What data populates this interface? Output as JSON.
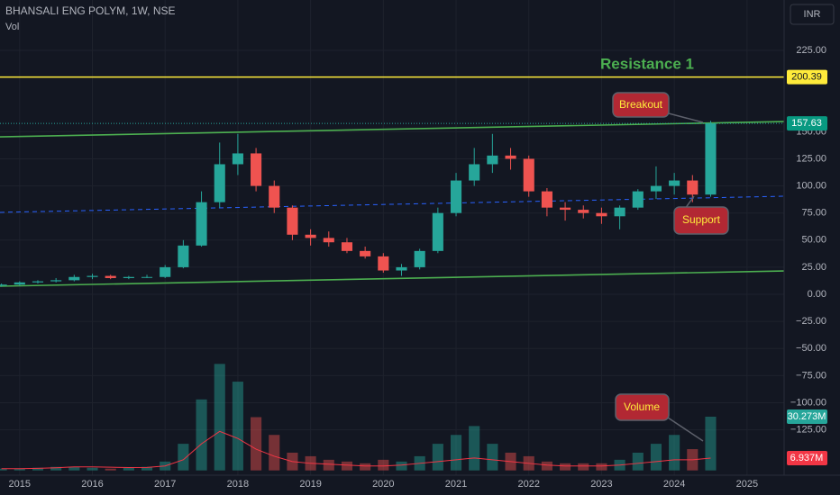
{
  "chart_data": {
    "type": "candlestick",
    "title": "BHANSALI ENG POLYM, 1W, NSE",
    "subtitle": "Vol",
    "currency": "INR",
    "x": [
      2014.75,
      2015.0,
      2015.25,
      2015.5,
      2015.75,
      2016.0,
      2016.25,
      2016.5,
      2016.75,
      2017.0,
      2017.25,
      2017.5,
      2017.75,
      2018.0,
      2018.25,
      2018.5,
      2018.75,
      2019.0,
      2019.25,
      2019.5,
      2019.75,
      2020.0,
      2020.25,
      2020.5,
      2020.75,
      2021.0,
      2021.25,
      2021.5,
      2021.75,
      2022.0,
      2022.25,
      2022.5,
      2022.75,
      2023.0,
      2023.25,
      2023.5,
      2023.75,
      2024.0,
      2024.25,
      2024.5
    ],
    "open": [
      8,
      9,
      11,
      12,
      13,
      16,
      17,
      15,
      16,
      16,
      25,
      45,
      85,
      120,
      130,
      100,
      80,
      55,
      52,
      48,
      40,
      35,
      22,
      25,
      40,
      75,
      105,
      120,
      128,
      125,
      95,
      80,
      78,
      75,
      72,
      80,
      95,
      100,
      105,
      92
    ],
    "high": [
      10,
      12,
      13,
      15,
      18,
      19,
      18,
      17,
      18,
      27,
      50,
      95,
      140,
      148,
      135,
      105,
      82,
      60,
      58,
      52,
      44,
      38,
      28,
      42,
      80,
      112,
      135,
      148,
      135,
      128,
      98,
      85,
      82,
      80,
      82,
      97,
      118,
      112,
      110,
      160
    ],
    "low": [
      7,
      8,
      10,
      11,
      12,
      14,
      14,
      14,
      15,
      15,
      24,
      44,
      80,
      110,
      95,
      75,
      50,
      45,
      44,
      38,
      33,
      20,
      17,
      23,
      38,
      72,
      100,
      112,
      115,
      90,
      72,
      68,
      70,
      65,
      60,
      78,
      88,
      92,
      85,
      90
    ],
    "close": [
      9,
      11,
      12,
      13,
      16,
      17,
      15,
      16,
      16,
      25,
      45,
      85,
      120,
      130,
      100,
      80,
      55,
      52,
      48,
      40,
      35,
      22,
      25,
      40,
      75,
      105,
      120,
      128,
      125,
      95,
      80,
      78,
      75,
      72,
      80,
      95,
      100,
      105,
      92,
      157.63
    ],
    "up_color": "#26a69a",
    "down_color": "#ef5350",
    "volume": {
      "values": [
        1,
        1,
        1.5,
        2,
        2,
        1.5,
        1,
        1.5,
        2,
        5,
        15,
        40,
        60,
        50,
        30,
        20,
        10,
        8,
        6,
        5,
        4,
        6,
        5,
        8,
        15,
        20,
        25,
        15,
        10,
        8,
        5,
        4,
        4,
        4,
        6,
        10,
        15,
        20,
        12,
        30.273
      ],
      "ma": [
        1,
        1,
        1.2,
        1.5,
        2,
        2,
        1.8,
        1.6,
        1.7,
        2.5,
        6,
        15,
        22,
        18,
        12,
        8,
        5,
        4,
        3.5,
        3,
        2.5,
        2.5,
        3,
        4,
        5,
        6,
        7,
        6,
        5,
        4,
        3,
        2.5,
        2.5,
        2.5,
        3,
        4,
        5,
        6,
        6,
        6.937
      ],
      "ma_color": "#f23645",
      "y2lim": [
        0,
        265
      ],
      "last": {
        "value": 30.273,
        "label": "30.273M"
      },
      "ma_last": {
        "value": 6.937,
        "label": "6.937M"
      }
    },
    "xlim": [
      2014.73,
      2025.51
    ],
    "xticks": [
      2015,
      2016,
      2017,
      2018,
      2019,
      2020,
      2021,
      2022,
      2023,
      2024,
      2025
    ],
    "ylim": [
      -168.5,
      271.5
    ],
    "yticks": [
      {
        "value": 225,
        "label": "225.00"
      },
      {
        "value": 150,
        "label": "150.00"
      },
      {
        "value": 125,
        "label": "125.00"
      },
      {
        "value": 100,
        "label": "100.00"
      },
      {
        "value": 75,
        "label": "75.00"
      },
      {
        "value": 50,
        "label": "50.00"
      },
      {
        "value": 25,
        "label": "25.00"
      },
      {
        "value": 0,
        "label": "0.00"
      },
      {
        "value": -25,
        "label": "−25.00"
      },
      {
        "value": -50,
        "label": "−50.00"
      },
      {
        "value": -75,
        "label": "−75.00"
      },
      {
        "value": -100,
        "label": "−100.00"
      },
      {
        "value": -125,
        "label": "−125.00"
      }
    ],
    "resistance": {
      "value": 200.39,
      "name": "Resistance 1",
      "color": "#ffeb3b"
    },
    "last_price": 157.63,
    "channel_upper": {
      "y": [
        145.3,
        159.4
      ],
      "color": "#4caf50"
    },
    "channel_lower": {
      "y": [
        7.5,
        21.6
      ],
      "color": "#4caf50"
    },
    "support_line": {
      "y": [
        75.6,
        90.5
      ],
      "color": "#2962ff"
    },
    "annotations": [
      "Breakout",
      "Support",
      "Volume"
    ]
  }
}
